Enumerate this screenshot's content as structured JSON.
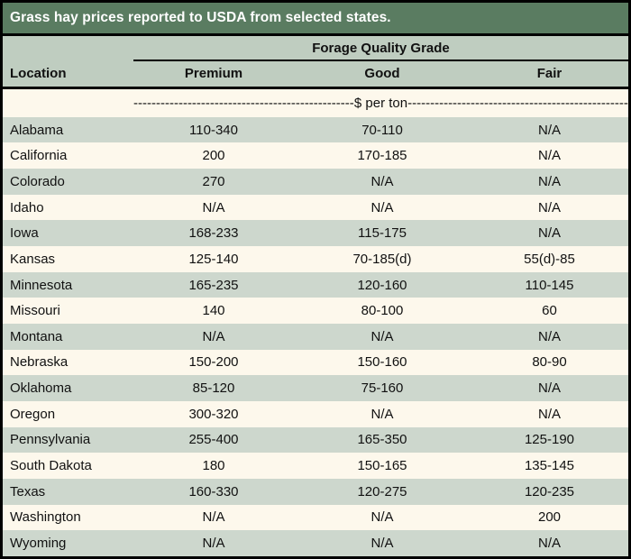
{
  "title": "Grass hay prices reported to USDA from selected states.",
  "colors": {
    "title_bar_bg": "#5a7c61",
    "title_text": "#ffffff",
    "header_band_bg": "#bfcdc0",
    "row_green": "#cdd7cd",
    "row_cream": "#fdf8ec",
    "border": "#000000",
    "body_text": "#111111"
  },
  "chart_data": {
    "type": "table",
    "title": "Grass hay prices reported to USDA from selected states.",
    "group_header": "Forage Quality Grade",
    "columns": [
      "Location",
      "Premium",
      "Good",
      "Fair"
    ],
    "unit_label": "$ per ton",
    "dash_fill": "------------------------------------------------------------------------------------------",
    "rows": [
      [
        "Alabama",
        "110-340",
        "70-110",
        "N/A"
      ],
      [
        "California",
        "200",
        "170-185",
        "N/A"
      ],
      [
        "Colorado",
        "270",
        "N/A",
        "N/A"
      ],
      [
        "Idaho",
        "N/A",
        "N/A",
        "N/A"
      ],
      [
        "Iowa",
        "168-233",
        "115-175",
        "N/A"
      ],
      [
        "Kansas",
        "125-140",
        "70-185(d)",
        "55(d)-85"
      ],
      [
        "Minnesota",
        "165-235",
        "120-160",
        "110-145"
      ],
      [
        "Missouri",
        "140",
        "80-100",
        "60"
      ],
      [
        "Montana",
        "N/A",
        "N/A",
        "N/A"
      ],
      [
        "Nebraska",
        "150-200",
        "150-160",
        "80-90"
      ],
      [
        "Oklahoma",
        "85-120",
        "75-160",
        "N/A"
      ],
      [
        "Oregon",
        "300-320",
        "N/A",
        "N/A"
      ],
      [
        "Pennsylvania",
        "255-400",
        "165-350",
        "125-190"
      ],
      [
        "South Dakota",
        "180",
        "150-165",
        "135-145"
      ],
      [
        "Texas",
        "160-330",
        "120-275",
        "120-235"
      ],
      [
        "Washington",
        "N/A",
        "N/A",
        "200"
      ],
      [
        "Wyoming",
        "N/A",
        "N/A",
        "N/A"
      ]
    ]
  }
}
